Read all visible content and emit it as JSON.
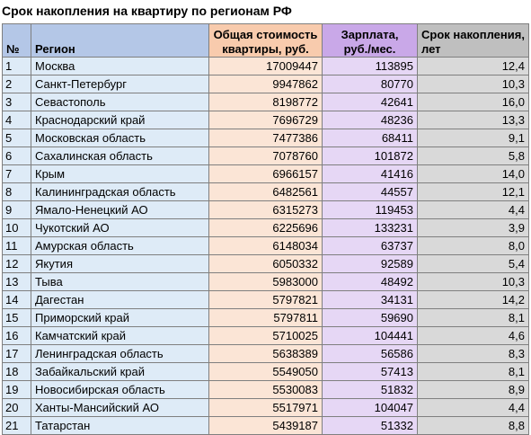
{
  "title": "Срок накопления на квартиру по регионам РФ",
  "headers": {
    "num": "№",
    "region": "Регион",
    "price": "Общая стоимость квартиры, руб.",
    "salary": "Зарплата, руб./мес.",
    "years": "Срок накопления, лет"
  },
  "rows": [
    {
      "num": "1",
      "region": "Москва",
      "price": "17009447",
      "salary": "113895",
      "years": "12,4"
    },
    {
      "num": "2",
      "region": "Санкт-Петербург",
      "price": "9947862",
      "salary": "80770",
      "years": "10,3"
    },
    {
      "num": "3",
      "region": "Севастополь",
      "price": "8198772",
      "salary": "42641",
      "years": "16,0"
    },
    {
      "num": "4",
      "region": "Краснодарский край",
      "price": "7696729",
      "salary": "48236",
      "years": "13,3"
    },
    {
      "num": "5",
      "region": "Московская область",
      "price": "7477386",
      "salary": "68411",
      "years": "9,1"
    },
    {
      "num": "6",
      "region": "Сахалинская область",
      "price": "7078760",
      "salary": "101872",
      "years": "5,8"
    },
    {
      "num": "7",
      "region": "Крым",
      "price": "6966157",
      "salary": "41416",
      "years": "14,0"
    },
    {
      "num": "8",
      "region": "Калининградская область",
      "price": "6482561",
      "salary": "44557",
      "years": "12,1"
    },
    {
      "num": "9",
      "region": "Ямало-Ненецкий АО",
      "price": "6315273",
      "salary": "119453",
      "years": "4,4"
    },
    {
      "num": "10",
      "region": "Чукотский АО",
      "price": "6225696",
      "salary": "133231",
      "years": "3,9"
    },
    {
      "num": "11",
      "region": "Амурская область",
      "price": "6148034",
      "salary": "63737",
      "years": "8,0"
    },
    {
      "num": "12",
      "region": "Якутия",
      "price": "6050332",
      "salary": "92589",
      "years": "5,4"
    },
    {
      "num": "13",
      "region": "Тыва",
      "price": "5983000",
      "salary": "48492",
      "years": "10,3"
    },
    {
      "num": "14",
      "region": "Дагестан",
      "price": "5797821",
      "salary": "34131",
      "years": "14,2"
    },
    {
      "num": "15",
      "region": "Приморский край",
      "price": "5797811",
      "salary": "59690",
      "years": "8,1"
    },
    {
      "num": "16",
      "region": "Камчатский край",
      "price": "5710025",
      "salary": "104441",
      "years": "4,6"
    },
    {
      "num": "17",
      "region": "Ленинградская область",
      "price": "5638389",
      "salary": "56586",
      "years": "8,3"
    },
    {
      "num": "18",
      "region": "Забайкальский край",
      "price": "5549050",
      "salary": "57413",
      "years": "8,1"
    },
    {
      "num": "19",
      "region": "Новосибирская область",
      "price": "5530083",
      "salary": "51832",
      "years": "8,9"
    },
    {
      "num": "20",
      "region": "Ханты-Мансийский АО",
      "price": "5517971",
      "salary": "104047",
      "years": "4,4"
    },
    {
      "num": "21",
      "region": "Татарстан",
      "price": "5439187",
      "salary": "51332",
      "years": "8,8"
    }
  ]
}
